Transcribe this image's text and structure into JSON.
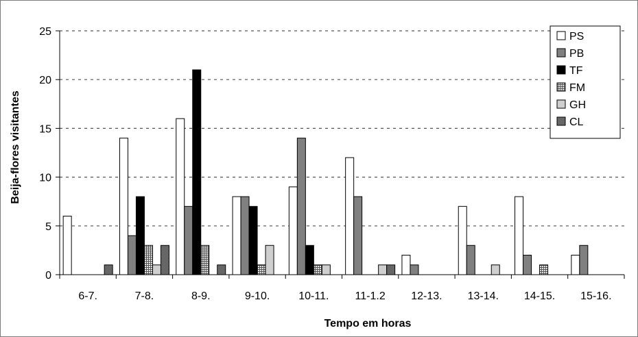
{
  "chart_data": {
    "type": "bar",
    "title": "",
    "xlabel": "Tempo em horas",
    "ylabel": "Beija-flores visitantes",
    "ylim": [
      0,
      25
    ],
    "yticks": [
      0,
      5,
      10,
      15,
      20,
      25
    ],
    "grid": true,
    "legend_position": "top-right",
    "categories": [
      "6-7.",
      "7-8.",
      "8-9.",
      "9-10.",
      "10-11.",
      "11-1.2",
      "12-13.",
      "13-14.",
      "14-15.",
      "15-16."
    ],
    "series": [
      {
        "name": "PS",
        "color": "#ffffff",
        "pattern": "solid",
        "values": [
          6,
          14,
          16,
          8,
          9,
          12,
          2,
          7,
          8,
          2
        ]
      },
      {
        "name": "PB",
        "color": "#808080",
        "pattern": "solid",
        "values": [
          0,
          4,
          7,
          8,
          14,
          8,
          1,
          3,
          2,
          3
        ]
      },
      {
        "name": "TF",
        "color": "#000000",
        "pattern": "solid",
        "values": [
          0,
          8,
          21,
          7,
          3,
          0,
          0,
          0,
          0,
          0
        ]
      },
      {
        "name": "FM",
        "color": "#9a9a9a",
        "pattern": "grid",
        "values": [
          0,
          3,
          3,
          1,
          1,
          0,
          0,
          0,
          1,
          0
        ]
      },
      {
        "name": "GH",
        "color": "#cfcfcf",
        "pattern": "solid",
        "values": [
          0,
          1,
          0,
          3,
          1,
          1,
          0,
          1,
          0,
          0
        ]
      },
      {
        "name": "CL",
        "color": "#6e6e6e",
        "pattern": "dots",
        "values": [
          1,
          3,
          1,
          0,
          0,
          1,
          0,
          0,
          0,
          0
        ]
      }
    ]
  }
}
